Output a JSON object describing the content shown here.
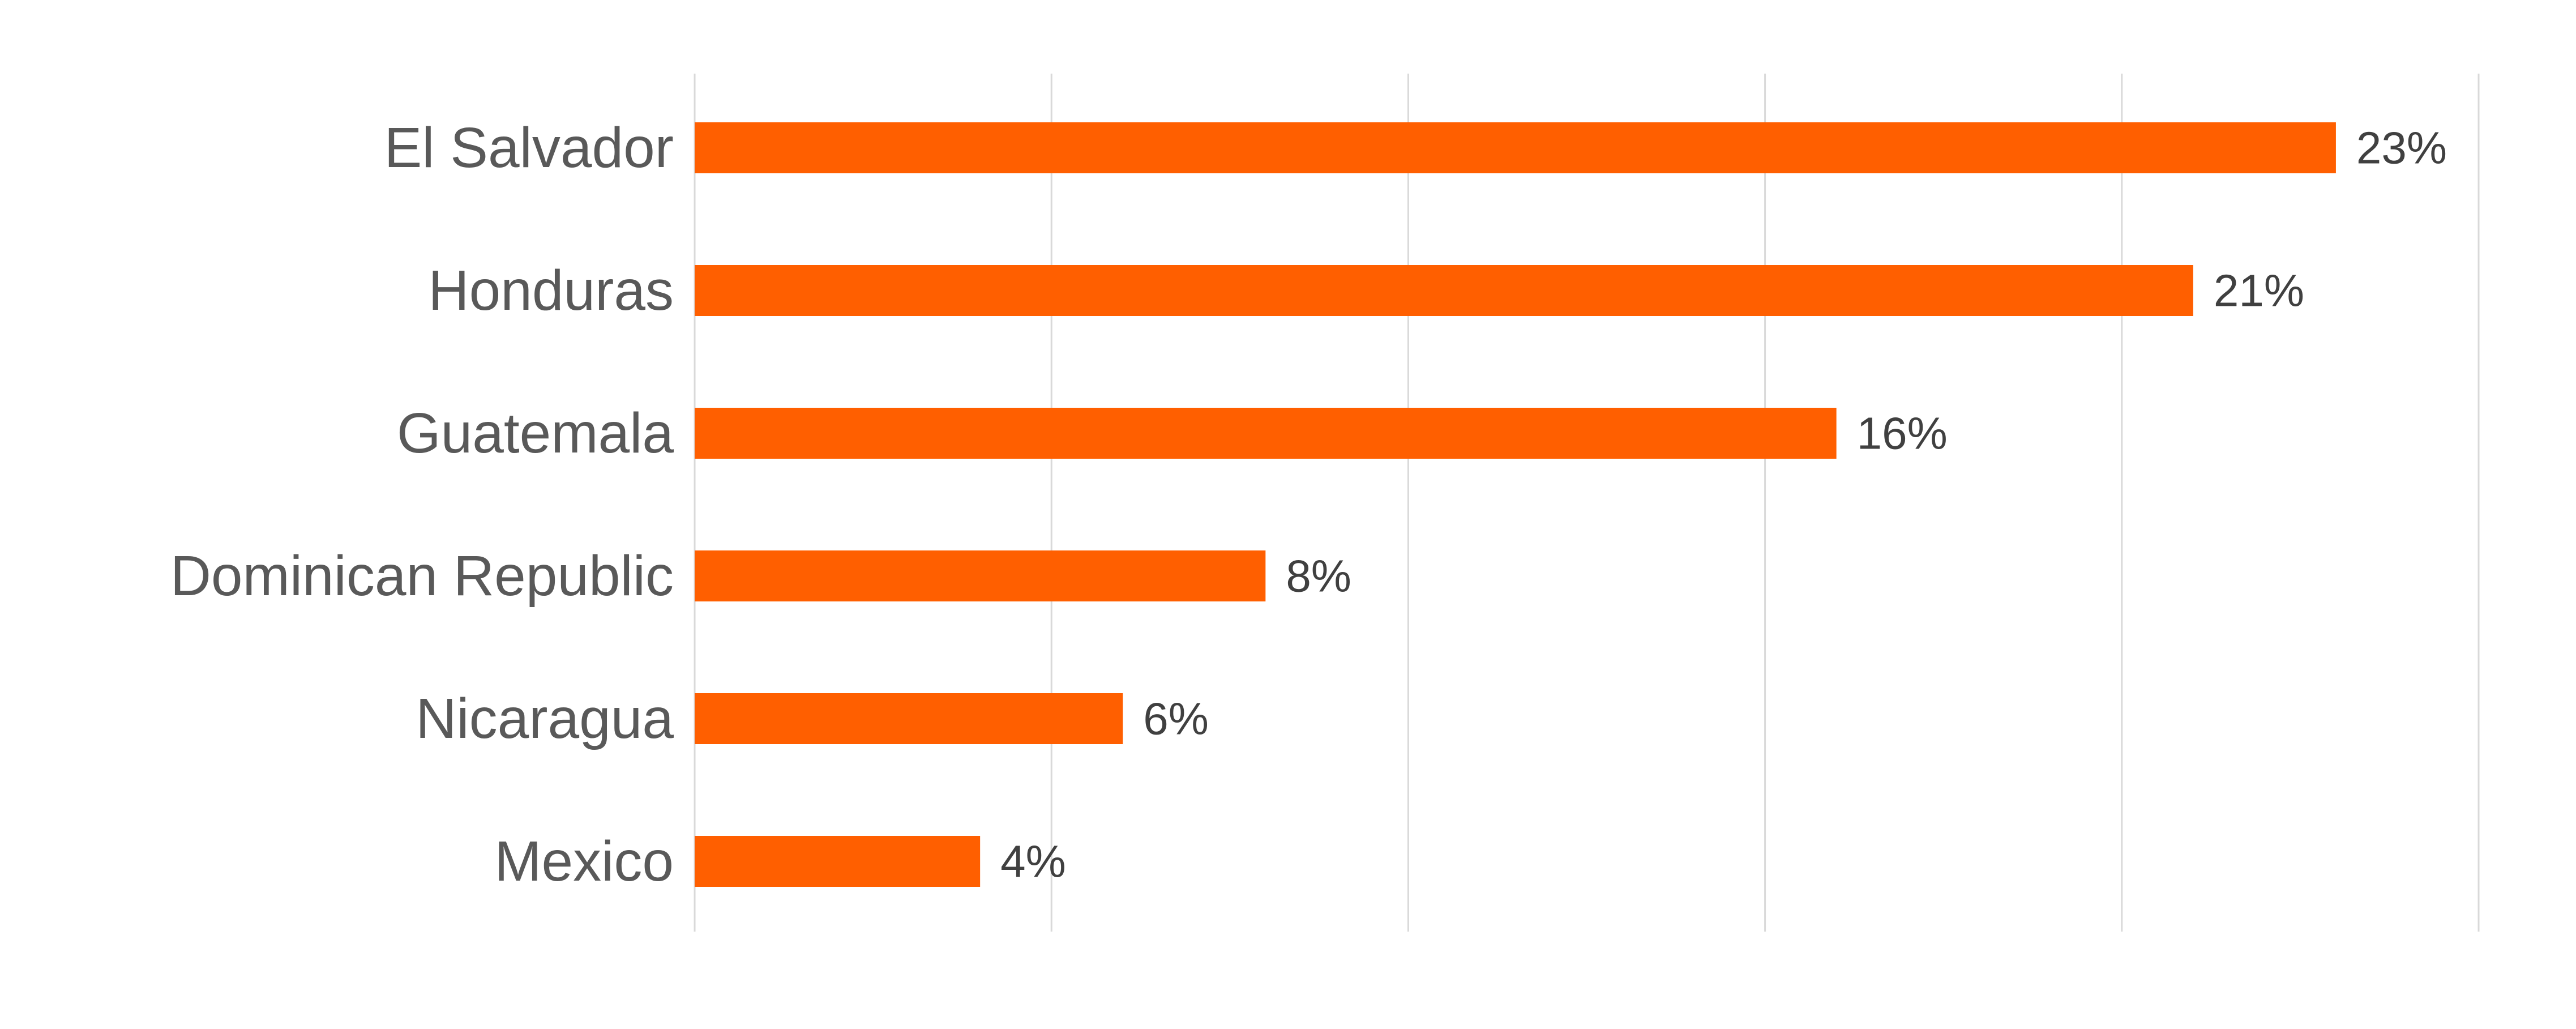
{
  "chart_data": {
    "type": "bar",
    "orientation": "horizontal",
    "categories": [
      "El Salvador",
      "Honduras",
      "Guatemala",
      "Dominican Republic",
      "Nicaragua",
      "Mexico"
    ],
    "values": [
      23,
      21,
      16,
      8,
      6,
      4
    ],
    "data_labels": [
      "23%",
      "21%",
      "16%",
      "8%",
      "6%",
      "4%"
    ],
    "unit": "%",
    "xlim": [
      0,
      25
    ],
    "grid": true,
    "legend": "none",
    "title": "",
    "xlabel": "",
    "ylabel": "",
    "colors": {
      "bar": "#ff5f00",
      "grid": "#d9d9d9",
      "category_text": "#595959",
      "data_label_text": "#404040"
    }
  }
}
